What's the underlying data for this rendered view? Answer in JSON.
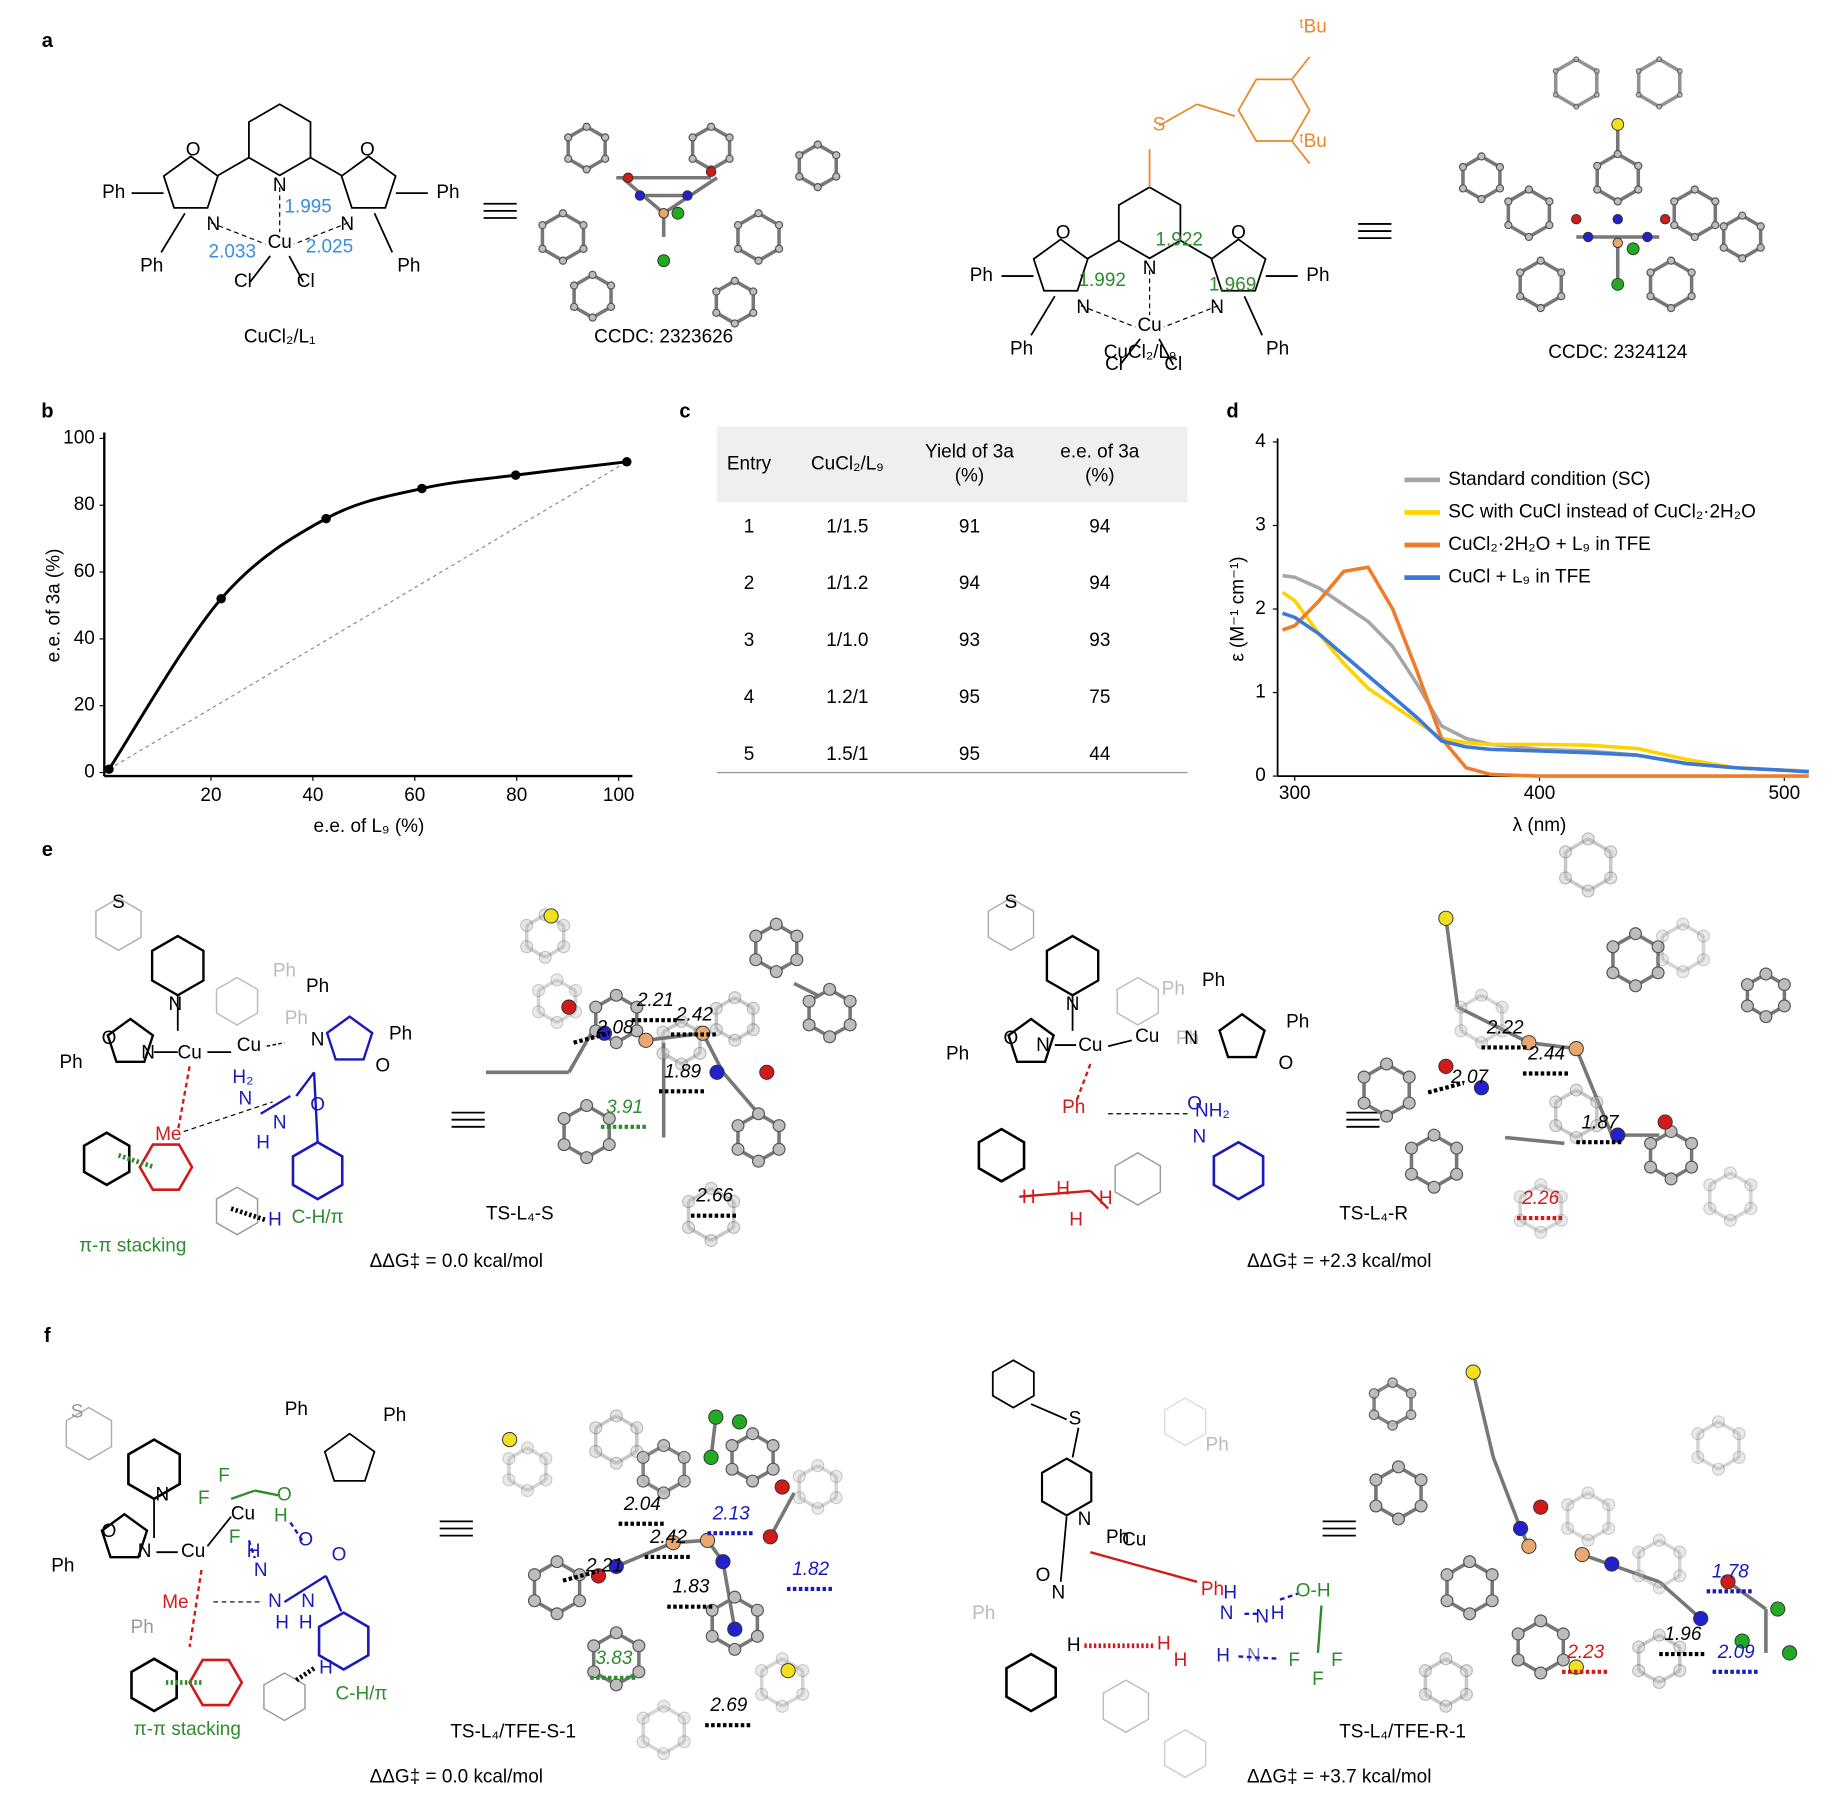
{
  "panel_labels": [
    "a",
    "b",
    "c",
    "d",
    "e",
    "f"
  ],
  "panel_a": {
    "l1": {
      "atoms": [
        "Ph",
        "O",
        "N",
        "N",
        "N",
        "O",
        "Ph",
        "Ph",
        "Cu",
        "Ph",
        "Cl",
        "Cl"
      ],
      "distances": [
        "1.995",
        "2.033",
        "2.025"
      ],
      "caption": "CuCl₂/L₁"
    },
    "l1_crystal": "CCDC: 2323626",
    "l9": {
      "atoms": [
        "S",
        "ᵗBu",
        "ᵗBu",
        "Ph",
        "O",
        "N",
        "N",
        "N",
        "O",
        "Ph",
        "Ph",
        "Cu",
        "Ph",
        "Cl",
        "Cl"
      ],
      "distances": [
        "1.922",
        "1.992",
        "1.969"
      ],
      "caption": "CuCl₂/L₉"
    },
    "l9_crystal": "CCDC: 2324124"
  },
  "chart_data": [
    {
      "type": "line",
      "x_label": "e.e. of L₉ (%)",
      "y_label": "e.e. of 3a (%)",
      "x": [
        0,
        22,
        42.6,
        61.4,
        79.8,
        101.6
      ],
      "series": [
        {
          "color": "#000000",
          "values": [
            1,
            52,
            76,
            85,
            89,
            93
          ]
        }
      ],
      "xlim": [
        0,
        102
      ],
      "ylim": [
        0,
        100
      ],
      "xticks": [
        20,
        40,
        60,
        80,
        100
      ],
      "yticks": [
        0,
        20,
        40,
        60,
        80,
        100
      ]
    },
    {
      "type": "line",
      "x_label": "λ (nm)",
      "y_label": "ε (M⁻¹ cm⁻¹)",
      "x": [
        295,
        300,
        310,
        320,
        330,
        340,
        350,
        360,
        370,
        380,
        400,
        420,
        440,
        460,
        480,
        500,
        510
      ],
      "series": [
        {
          "name": "Standard condition (SC)",
          "color": "#a6a6a6",
          "values": [
            2.4,
            2.38,
            2.25,
            2.05,
            1.85,
            1.55,
            1.1,
            0.6,
            0.45,
            0.38,
            0.32,
            0.3,
            0.25,
            0.15,
            0.1,
            0.07,
            0.06
          ]
        },
        {
          "name": "SC with CuCl instead of CuCl₂·2H₂O",
          "color": "#ffd200",
          "values": [
            2.2,
            2.1,
            1.7,
            1.35,
            1.05,
            0.85,
            0.65,
            0.45,
            0.4,
            0.38,
            0.38,
            0.37,
            0.33,
            0.2,
            0.1,
            0.07,
            0.06
          ]
        },
        {
          "name": "CuCl₂·2H₂O + L₉ in TFE",
          "color": "#f07c2a",
          "values": [
            1.75,
            1.8,
            2.1,
            2.45,
            2.5,
            2.0,
            1.25,
            0.45,
            0.1,
            0.02,
            0,
            0,
            0,
            0,
            0,
            0,
            0
          ]
        },
        {
          "name": "CuCl + L₉ in TFE",
          "color": "#3c78d8",
          "values": [
            1.95,
            1.9,
            1.7,
            1.45,
            1.2,
            0.95,
            0.7,
            0.42,
            0.35,
            0.32,
            0.3,
            0.28,
            0.25,
            0.15,
            0.1,
            0.07,
            0.05
          ]
        }
      ],
      "xlim": [
        293,
        507
      ],
      "ylim": [
        0,
        4
      ],
      "xticks": [
        300,
        400,
        500
      ],
      "yticks": [
        0,
        1,
        2,
        3,
        4
      ]
    }
  ],
  "table": {
    "header": [
      [
        "Entry"
      ],
      [
        "CuCl₂/L₉"
      ],
      [
        "Yield of 3a",
        "(%)"
      ],
      [
        "e.e. of 3a",
        "(%)"
      ]
    ],
    "rows": [
      [
        "1",
        "1/1.5",
        "91",
        "94"
      ],
      [
        "2",
        "1/1.2",
        "94",
        "94"
      ],
      [
        "3",
        "1/1.0",
        "93",
        "93"
      ],
      [
        "4",
        "1.2/1",
        "95",
        "75"
      ],
      [
        "5",
        "1.5/1",
        "95",
        "44"
      ]
    ]
  },
  "panel_e": {
    "s": {
      "atoms": [
        "S",
        "N",
        "O",
        "N",
        "Cu",
        "Cu",
        "Ph",
        "Ph",
        "Ph",
        "Ph",
        "N",
        "O",
        "Ph",
        "H₂",
        "N",
        "N",
        "H",
        "O",
        "Me",
        "H"
      ],
      "annotations": [
        "π-π stacking",
        "C-H/π"
      ],
      "distances": [
        "2.21",
        "2.42",
        "2.08",
        "1.89",
        "3.91",
        "2.66"
      ],
      "caption": "TS-L₄-S",
      "energy": "ΔΔG‡ = 0.0 kcal/mol"
    },
    "r": {
      "atoms": [
        "S",
        "N",
        "O",
        "N",
        "Cu",
        "Cu",
        "Ph",
        "Ph",
        "Ph",
        "Ph",
        "N",
        "O",
        "Ph",
        "Ph",
        "NH₂",
        "O",
        "N",
        "H",
        "H",
        "H",
        "H"
      ],
      "distances": [
        "2.22",
        "2.44",
        "2.07",
        "1.87",
        "2.26"
      ],
      "caption": "TS-L₄-R",
      "energy": "ΔΔG‡ = +2.3 kcal/mol"
    }
  },
  "panel_f": {
    "s": {
      "atoms": [
        "S",
        "N",
        "O",
        "N",
        "Cu",
        "F",
        "F",
        "Cu",
        "F",
        "O",
        "H",
        "Ph",
        "Ph",
        "O",
        "H",
        "N",
        "Me",
        "N",
        "N",
        "H",
        "H",
        "O",
        "Ph",
        "Ph",
        "H"
      ],
      "annotations": [
        "π-π stacking",
        "C-H/π"
      ],
      "distances": [
        "2.04",
        "2.42",
        "2.21",
        "1.83",
        "2.13",
        "1.82",
        "3.83",
        "2.69"
      ],
      "caption": "TS-L₄/TFE-S-1",
      "energy": "ΔΔG‡ = 0.0 kcal/mol"
    },
    "r": {
      "atoms": [
        "S",
        "N",
        "O",
        "N",
        "Ph",
        "Cu",
        "Ph",
        "Ph",
        "Ph",
        "H",
        "N",
        "N",
        "H",
        "O-H",
        "H",
        "N",
        "F",
        "F",
        "F",
        "H",
        "H",
        "H"
      ],
      "distances": [
        "1.78",
        "1.96",
        "2.09",
        "2.23"
      ],
      "caption": "TS-L₄/TFE-R-1",
      "energy": "ΔΔG‡ = +3.7 kcal/mol"
    }
  }
}
